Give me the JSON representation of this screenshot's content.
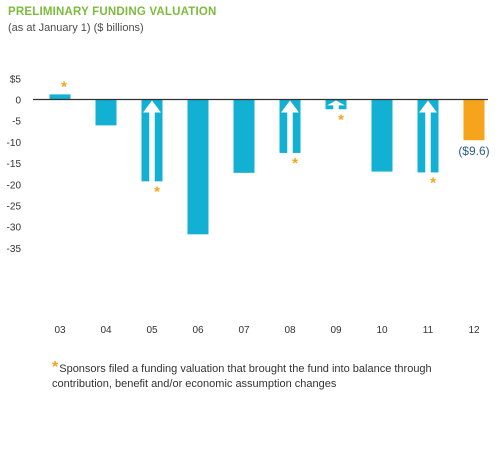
{
  "title": "PRELIMINARY FUNDING VALUATION",
  "subtitle": "(as at January 1) ($ billions)",
  "footnote": {
    "marker": "*",
    "text": "Sponsors filed a funding valuation that brought the fund into balance through contribution, benefit and/or economic assumption changes"
  },
  "colors": {
    "bar": "#12b0d3",
    "highlight": "#f5a41b",
    "title": "#7dbb3e",
    "zero_line": "#333333",
    "axis_text": "#333333",
    "value_label": "#2f5f86",
    "arrow": "#ffffff"
  },
  "chart_data": {
    "type": "bar",
    "title": "PRELIMINARY FUNDING VALUATION",
    "subtitle": "(as at January 1) ($ billions)",
    "categories": [
      "03",
      "04",
      "05",
      "06",
      "07",
      "08",
      "09",
      "10",
      "11",
      "12"
    ],
    "values": [
      1.2,
      -6.1,
      -19.3,
      -31.8,
      -17.3,
      -12.6,
      -2.3,
      -17.0,
      -17.2,
      -9.6
    ],
    "y_tick_labels": [
      "$5",
      "0",
      "-5",
      "-10",
      "-15",
      "-20",
      "-25",
      "-30",
      "-35"
    ],
    "y_ticks": [
      5,
      0,
      -5,
      -10,
      -15,
      -20,
      -25,
      -30,
      -35
    ],
    "ylim": [
      -35,
      5
    ],
    "grid": false,
    "highlight_category": "12",
    "highlight_label": "($9.6)",
    "balanced_by_sponsors": [
      "03",
      "05",
      "08",
      "09",
      "11"
    ],
    "balance_arrows": [
      "05",
      "08",
      "09",
      "11"
    ]
  }
}
